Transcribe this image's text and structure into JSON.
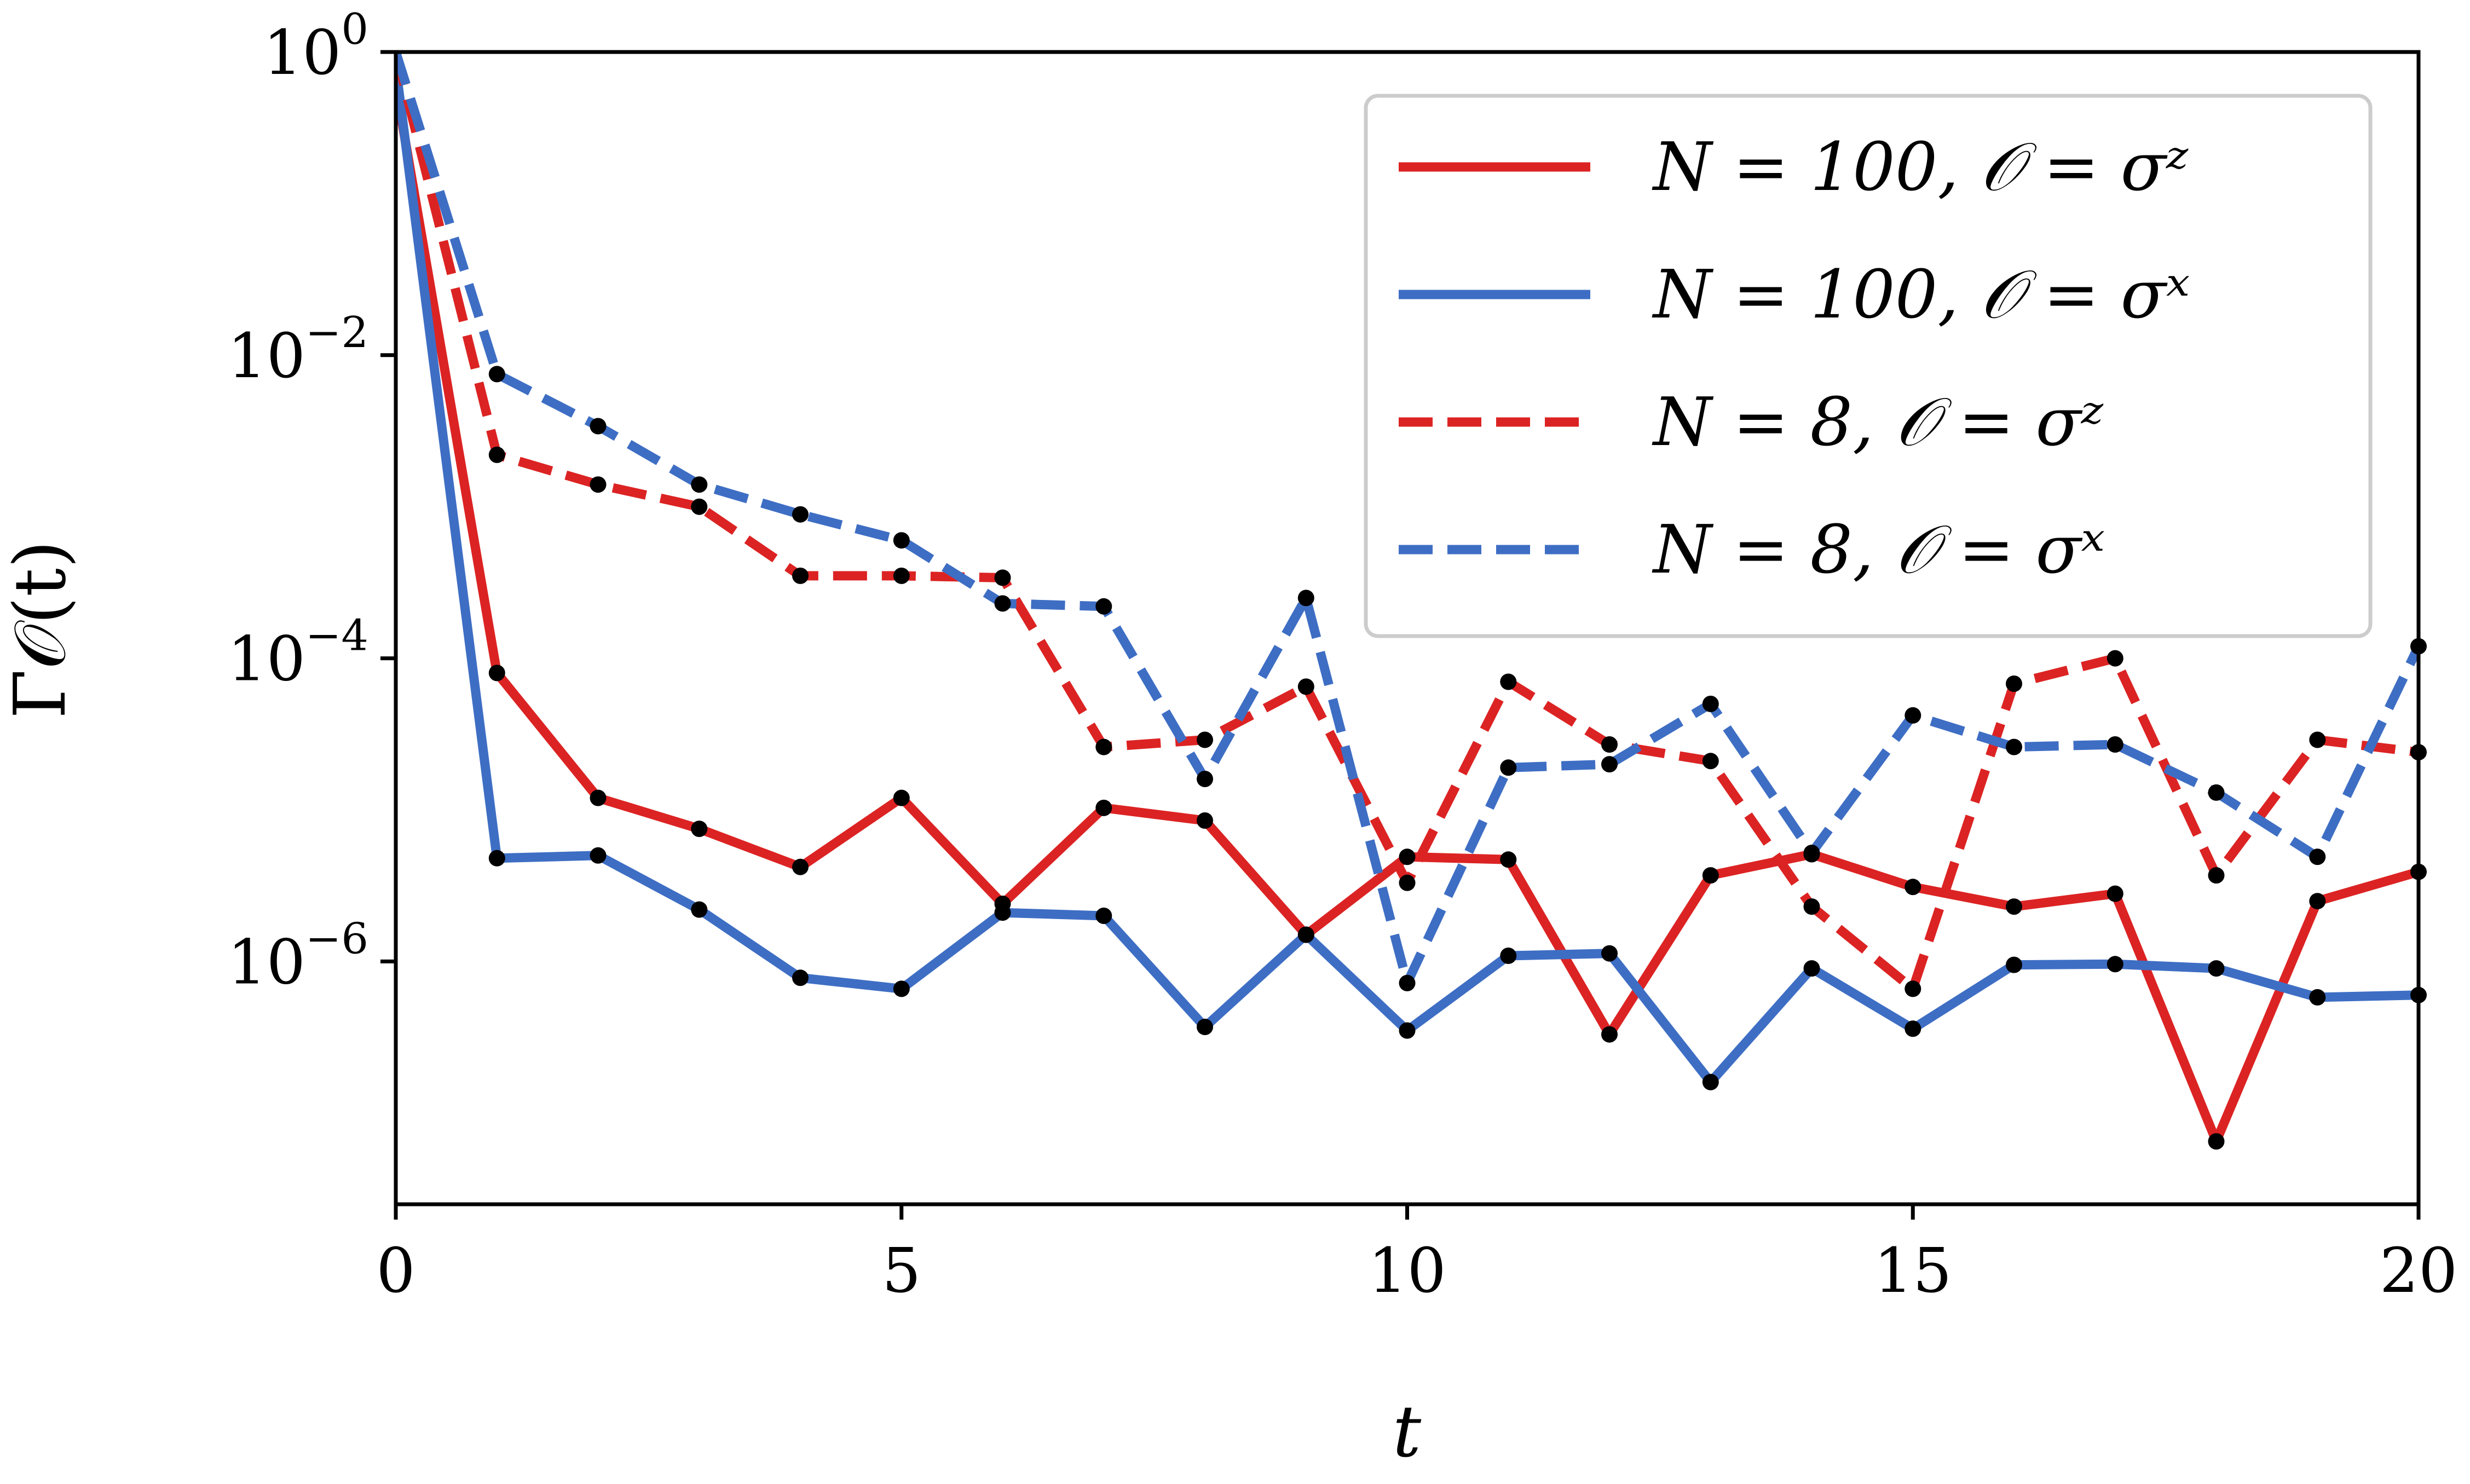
{
  "chart_data": {
    "type": "line",
    "xlabel": "t",
    "ylabel": "Γ𝒪(t)",
    "xlim": [
      0,
      20
    ],
    "ylim": [
      2.5e-08,
      1
    ],
    "yscale": "log",
    "xticks": [
      0,
      5,
      10,
      15,
      20
    ],
    "xtick_labels": [
      "0",
      "5",
      "10",
      "15",
      "20"
    ],
    "yticks": [
      1,
      0.01,
      0.0001,
      1e-06
    ],
    "ytick_labels": [
      {
        "base": "10",
        "exp": "0"
      },
      {
        "base": "10",
        "exp": "−2"
      },
      {
        "base": "10",
        "exp": "−4"
      },
      {
        "base": "10",
        "exp": "−6"
      }
    ],
    "grid": false,
    "legend_position": "top-right",
    "marker_color": "#000000",
    "series": [
      {
        "name": "N = 100, 𝒪 = σᶻ",
        "color": "#dc2323",
        "dashed": false,
        "x": [
          0,
          1,
          2,
          3,
          4,
          5,
          6,
          7,
          8,
          9,
          10,
          11,
          12,
          13,
          14,
          15,
          16,
          17,
          18,
          19,
          20
        ],
        "y": [
          0.6,
          8e-05,
          1.2e-05,
          7.5e-06,
          4.2e-06,
          1.2e-05,
          2.4e-06,
          1.03e-05,
          8.5e-06,
          1.5e-06,
          4.9e-06,
          4.7e-06,
          3.3e-07,
          3.7e-06,
          5.1e-06,
          3.1e-06,
          2.3e-06,
          2.8e-06,
          6.5e-08,
          2.5e-06,
          3.9e-06
        ]
      },
      {
        "name": "N = 100, 𝒪 = σˣ",
        "color": "#3e6ec4",
        "dashed": false,
        "x": [
          0,
          1,
          2,
          3,
          4,
          5,
          6,
          7,
          8,
          9,
          10,
          11,
          12,
          13,
          14,
          15,
          16,
          17,
          18,
          19,
          20
        ],
        "y": [
          0.8,
          4.8e-06,
          5e-06,
          2.2e-06,
          7.8e-07,
          6.6e-07,
          2.1e-06,
          2e-06,
          3.7e-07,
          1.5e-06,
          3.5e-07,
          1.09e-06,
          1.13e-06,
          1.6e-07,
          9e-07,
          3.6e-07,
          9.5e-07,
          9.6e-07,
          9e-07,
          5.8e-07,
          6e-07
        ]
      },
      {
        "name": "N = 8, 𝒪 = σᶻ",
        "color": "#dc2323",
        "dashed": true,
        "x": [
          0,
          1,
          2,
          3,
          4,
          5,
          6,
          7,
          8,
          9,
          10,
          11,
          12,
          13,
          14,
          15,
          16,
          17,
          18,
          19,
          20
        ],
        "y": [
          1,
          0.0022,
          0.0014,
          0.001,
          0.00035,
          0.00035,
          0.00034,
          2.6e-05,
          2.9e-05,
          6.5e-05,
          3.3e-06,
          7e-05,
          2.7e-05,
          2.1e-05,
          2.3e-06,
          6.6e-07,
          6.8e-05,
          0.0001,
          3.7e-06,
          2.9e-05,
          2.4e-05
        ]
      },
      {
        "name": "N = 8, 𝒪 = σˣ",
        "color": "#3e6ec4",
        "dashed": true,
        "x": [
          0,
          1,
          2,
          3,
          4,
          5,
          6,
          7,
          8,
          9,
          10,
          11,
          12,
          13,
          14,
          15,
          16,
          17,
          18,
          19,
          20
        ],
        "y": [
          1,
          0.0075,
          0.0034,
          0.0014,
          0.00089,
          0.0006,
          0.00023,
          0.00022,
          1.6e-05,
          0.00025,
          7.2e-07,
          1.9e-05,
          2e-05,
          5e-05,
          5.2e-06,
          4.2e-05,
          2.6e-05,
          2.7e-05,
          1.3e-05,
          4.9e-06,
          0.00012
        ]
      }
    ]
  }
}
